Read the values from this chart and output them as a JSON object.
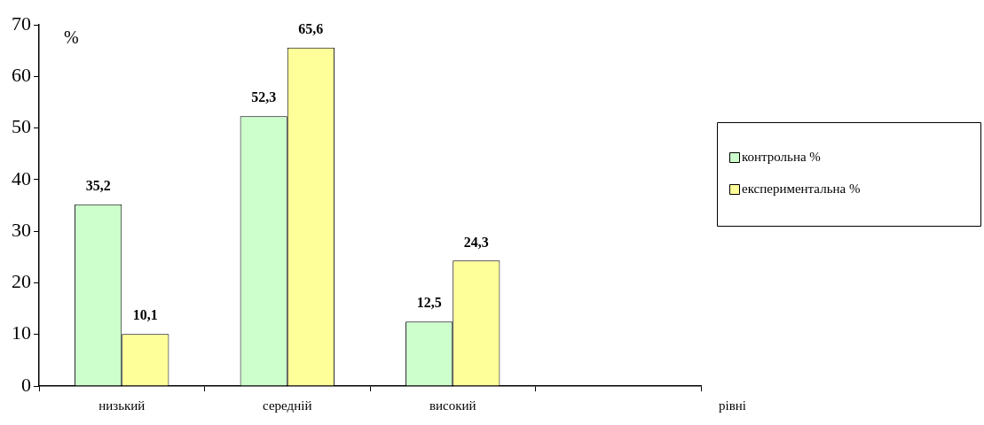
{
  "chart_data": {
    "type": "bar",
    "ylabel": "%",
    "xlabel": "рівні",
    "categories": [
      "низький",
      "середній",
      "високий",
      null
    ],
    "series": [
      {
        "name": "контрольна %",
        "color": "#ccffcc",
        "values": [
          35.2,
          52.3,
          12.5,
          null
        ],
        "value_labels": [
          "35,2",
          "52,3",
          "12,5",
          null
        ]
      },
      {
        "name": "експериментальна %",
        "color": "#ffff99",
        "values": [
          10.1,
          65.6,
          24.3,
          null
        ],
        "value_labels": [
          "10,1",
          "65,6",
          "24,3",
          null
        ]
      }
    ],
    "ylim": [
      0,
      70
    ],
    "yticks": [
      0,
      10,
      20,
      30,
      40,
      50,
      60,
      70
    ],
    "grid": false,
    "legend": "right"
  }
}
